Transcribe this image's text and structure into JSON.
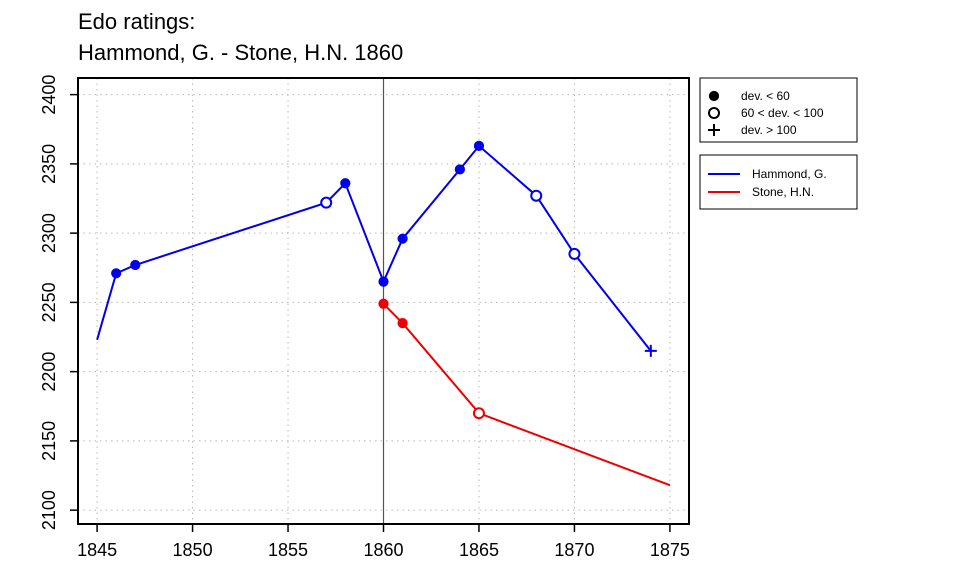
{
  "chart_data": {
    "type": "line",
    "title": "Edo ratings:",
    "subtitle": "Hammond, G. - Stone, H.N. 1860",
    "xlabel": "",
    "ylabel": "",
    "xlim": [
      1844,
      1876
    ],
    "ylim": [
      2090,
      2412
    ],
    "x_ticks": [
      1845,
      1850,
      1855,
      1860,
      1865,
      1870,
      1875
    ],
    "y_ticks": [
      2100,
      2150,
      2200,
      2250,
      2300,
      2350,
      2400
    ],
    "grid": true,
    "reference_line_x": 1860,
    "marker_legend": [
      {
        "marker": "filled-circle",
        "label": "dev. < 60"
      },
      {
        "marker": "open-circle",
        "label": "60 < dev. < 100"
      },
      {
        "marker": "plus",
        "label": "dev. > 100"
      }
    ],
    "series": [
      {
        "name": "Hammond, G.",
        "color": "#0000ee",
        "points": [
          {
            "x": 1845,
            "y": 2223,
            "marker": "none"
          },
          {
            "x": 1846,
            "y": 2271,
            "marker": "filled-circle"
          },
          {
            "x": 1847,
            "y": 2277,
            "marker": "filled-circle"
          },
          {
            "x": 1857,
            "y": 2322,
            "marker": "open-circle"
          },
          {
            "x": 1858,
            "y": 2336,
            "marker": "filled-circle"
          },
          {
            "x": 1860,
            "y": 2265,
            "marker": "filled-circle"
          },
          {
            "x": 1861,
            "y": 2296,
            "marker": "filled-circle"
          },
          {
            "x": 1864,
            "y": 2346,
            "marker": "filled-circle"
          },
          {
            "x": 1865,
            "y": 2363,
            "marker": "filled-circle"
          },
          {
            "x": 1868,
            "y": 2327,
            "marker": "open-circle"
          },
          {
            "x": 1870,
            "y": 2285,
            "marker": "open-circle"
          },
          {
            "x": 1874,
            "y": 2215,
            "marker": "plus"
          }
        ]
      },
      {
        "name": "Stone, H.N.",
        "color": "#ee0000",
        "points": [
          {
            "x": 1860,
            "y": 2249,
            "marker": "filled-circle"
          },
          {
            "x": 1861,
            "y": 2235,
            "marker": "filled-circle"
          },
          {
            "x": 1865,
            "y": 2170,
            "marker": "open-circle"
          },
          {
            "x": 1875,
            "y": 2118,
            "marker": "none"
          }
        ]
      }
    ]
  }
}
